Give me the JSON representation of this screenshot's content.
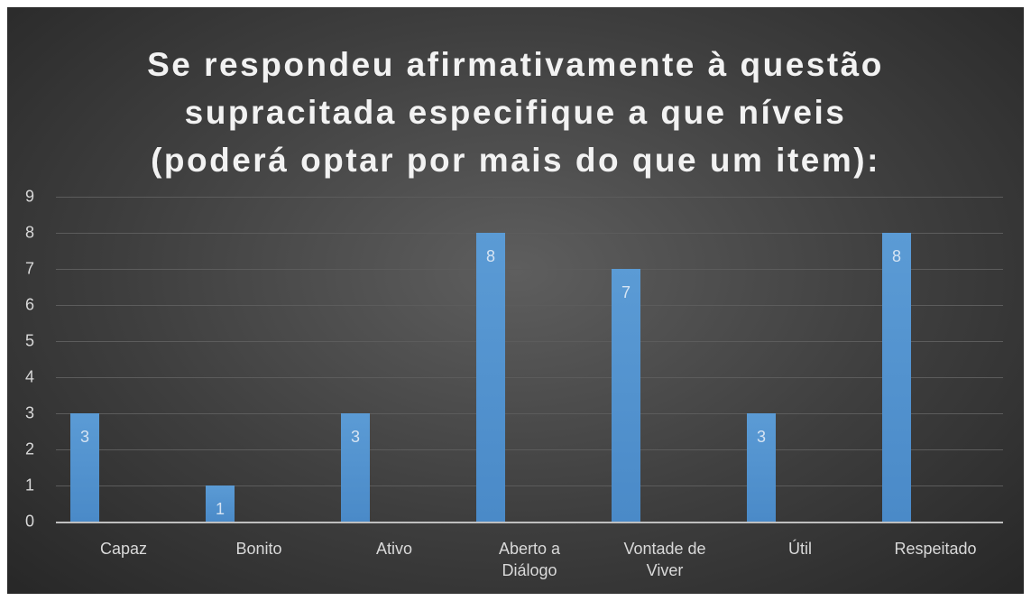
{
  "chart_data": {
    "type": "bar",
    "title": [
      "Se respondeu afirmativamente à questão",
      "supracitada especifique a que níveis",
      "(poderá optar por mais do que um item):"
    ],
    "categories": [
      "Capaz",
      "Bonito",
      "Ativo",
      "Aberto a Diálogo",
      "Vontade de Viver",
      "Útil",
      "Respeitado"
    ],
    "values": [
      3,
      1,
      3,
      8,
      7,
      3,
      8
    ],
    "color": "#5b9bd5",
    "ylim": [
      0,
      9
    ],
    "yticks": [
      0,
      1,
      2,
      3,
      4,
      5,
      6,
      7,
      8,
      9
    ],
    "grid": true
  }
}
